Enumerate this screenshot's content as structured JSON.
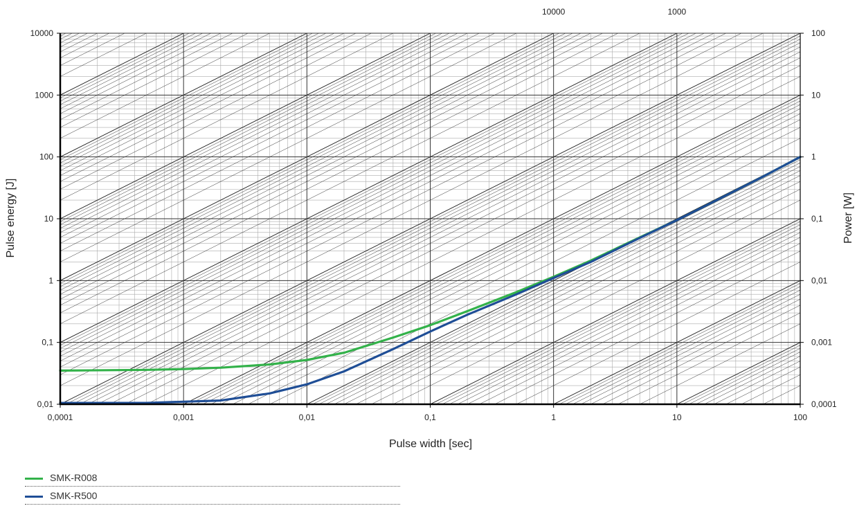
{
  "chart_data": {
    "type": "line",
    "x_scale": "log",
    "y_scale": "log",
    "xlabel": "Pulse width [sec]",
    "ylabel": "Pulse energy [J]",
    "y2label": "Power [W]",
    "xlim": [
      0.0001,
      100
    ],
    "ylim": [
      0.01,
      10000
    ],
    "x_ticks": [
      "0,0001",
      "0,001",
      "0,01",
      "0,1",
      "1",
      "10",
      "100"
    ],
    "y_ticks": [
      "0,01",
      "0,1",
      "1",
      "10",
      "100",
      "1000",
      "10000"
    ],
    "y2_ticks": [
      "0,0001",
      "0,001",
      "0,01",
      "0,1",
      "1",
      "10",
      "100"
    ],
    "top_labels": [
      {
        "text": "10000",
        "x": 1
      },
      {
        "text": "1000",
        "x": 10
      }
    ],
    "grid": true,
    "legend_position": "bottom-left",
    "series": [
      {
        "name": "SMK-R008",
        "color": "#33b24a",
        "x": [
          0.0001,
          0.0005,
          0.001,
          0.002,
          0.005,
          0.01,
          0.02,
          0.05,
          0.1,
          0.2,
          0.5,
          1,
          2,
          5,
          10,
          20,
          50,
          100
        ],
        "y": [
          0.035,
          0.036,
          0.037,
          0.039,
          0.044,
          0.052,
          0.068,
          0.12,
          0.19,
          0.32,
          0.65,
          1.15,
          2.1,
          5,
          9.5,
          19,
          48,
          100
        ]
      },
      {
        "name": "SMK-R500",
        "color": "#1f4e96",
        "x": [
          0.0001,
          0.0005,
          0.001,
          0.002,
          0.005,
          0.01,
          0.02,
          0.05,
          0.1,
          0.2,
          0.5,
          1,
          2,
          5,
          10,
          20,
          50,
          100
        ],
        "y": [
          0.0105,
          0.0105,
          0.011,
          0.0115,
          0.015,
          0.021,
          0.034,
          0.078,
          0.15,
          0.28,
          0.6,
          1.1,
          2,
          4.9,
          9.5,
          19,
          48,
          100
        ]
      }
    ]
  }
}
